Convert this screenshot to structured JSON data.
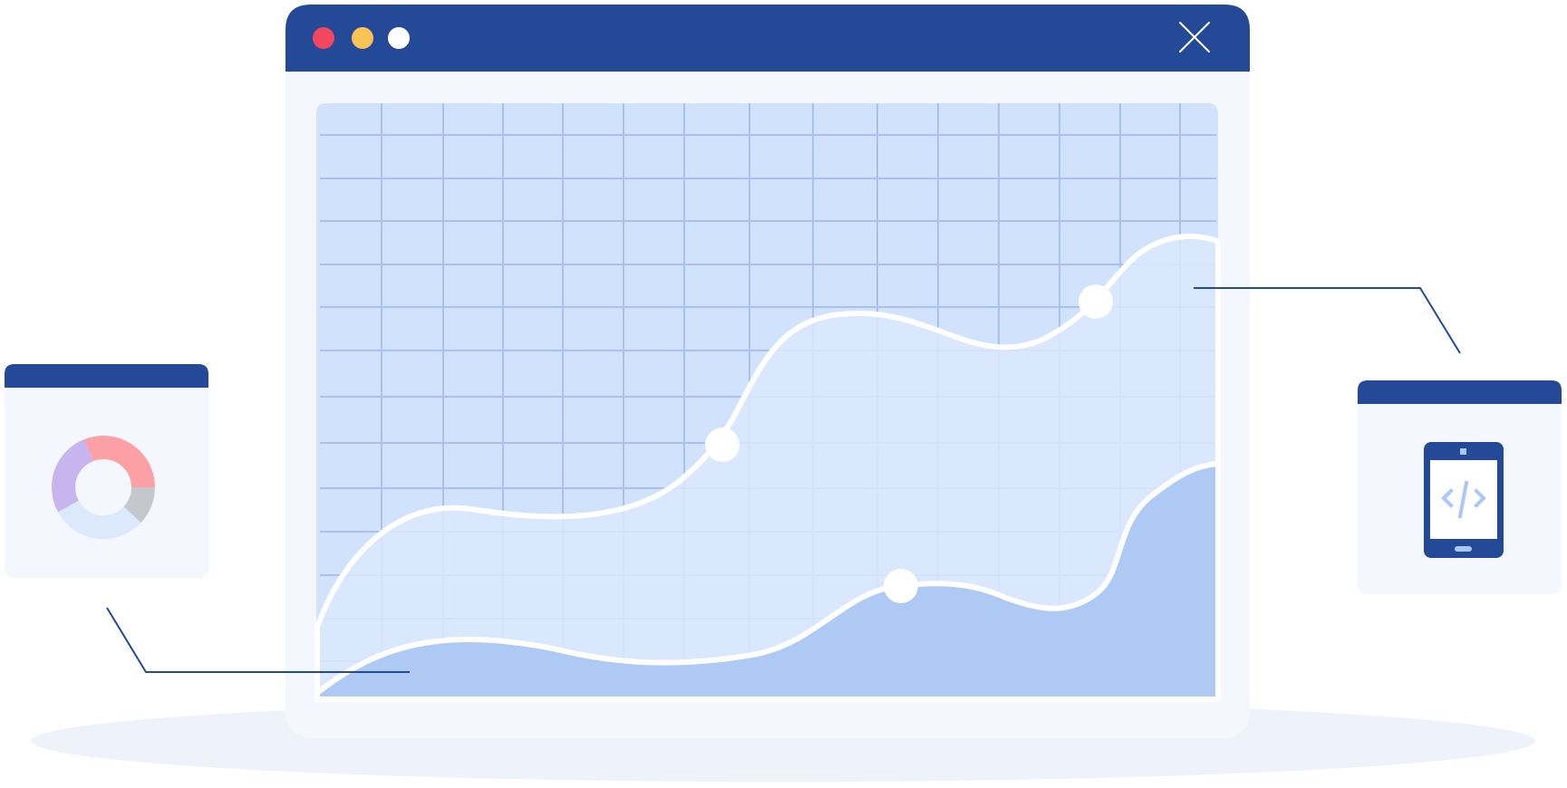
{
  "colors": {
    "window_frame": "#244A97",
    "window_body": "#F4F7FE",
    "plot_bg": "#D0E2FC",
    "grid_line": "#A9C0F0",
    "grid_line_dark": "#8EA9E6",
    "area_light": "#DCE9FD",
    "area_dark": "#ADC9F4",
    "line_white": "#FFFFFF",
    "shadow": "#EEF2FA",
    "dot_red": "#F2475E",
    "dot_yellow": "#F8C453",
    "dot_white": "#FFFFFF",
    "donut_pink": "#FCA0A6",
    "donut_purple": "#C8B4EE",
    "donut_blue": "#DCE9FD",
    "donut_gray": "#C4C7CC",
    "accent_light": "#A9C8F7"
  },
  "icons": {
    "main_close": "close-icon",
    "left_chart": "donut-chart-icon",
    "right_device": "mobile-code-icon"
  },
  "window_controls": [
    "close-dot",
    "minimize-dot",
    "maximize-dot"
  ]
}
